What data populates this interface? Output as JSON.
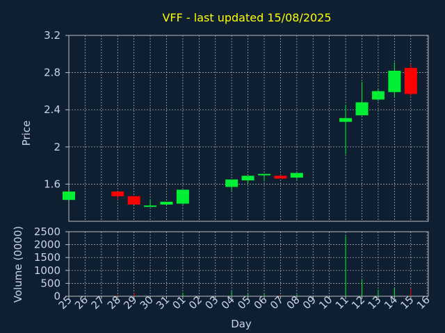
{
  "chart_data": [
    {
      "type": "candlestick",
      "title": "VFF - last updated 15/08/2025",
      "ylabel": "Price",
      "xlabel": "Day",
      "ylim": [
        1.2,
        3.2
      ],
      "yticks": [
        "3.2",
        "2.8",
        "2.4",
        "2",
        "1.6"
      ],
      "ytick_values": [
        3.2,
        2.8,
        2.4,
        2.0,
        1.6
      ],
      "grid": true,
      "x": [
        "25",
        "26",
        "27",
        "28",
        "29",
        "30",
        "31",
        "01",
        "02",
        "03",
        "04",
        "05",
        "06",
        "07",
        "08",
        "09",
        "10",
        "11",
        "12",
        "13",
        "14",
        "15",
        "16"
      ],
      "candles": [
        {
          "day": "25",
          "open": 1.43,
          "close": 1.52,
          "high": 1.52,
          "low": 1.43,
          "color": "#00ee33"
        },
        {
          "day": "28",
          "open": 1.52,
          "close": 1.47,
          "high": 1.52,
          "low": 1.43,
          "color": "#ff0000"
        },
        {
          "day": "29",
          "open": 1.47,
          "close": 1.38,
          "high": 1.47,
          "low": 1.38,
          "color": "#ff0000"
        },
        {
          "day": "30",
          "open": 1.36,
          "close": 1.37,
          "high": 1.44,
          "low": 1.36,
          "color": "#00ee33"
        },
        {
          "day": "31",
          "open": 1.38,
          "close": 1.41,
          "high": 1.41,
          "low": 1.38,
          "color": "#00ee33"
        },
        {
          "day": "01",
          "open": 1.39,
          "close": 1.54,
          "high": 1.54,
          "low": 1.38,
          "color": "#00ee33"
        },
        {
          "day": "04",
          "open": 1.57,
          "close": 1.65,
          "high": 1.65,
          "low": 1.53,
          "color": "#00ee33"
        },
        {
          "day": "05",
          "open": 1.64,
          "close": 1.69,
          "high": 1.69,
          "low": 1.6,
          "color": "#00ee33"
        },
        {
          "day": "06",
          "open": 1.7,
          "close": 1.71,
          "high": 1.71,
          "low": 1.63,
          "color": "#00ee33"
        },
        {
          "day": "07",
          "open": 1.69,
          "close": 1.66,
          "high": 1.7,
          "low": 1.66,
          "color": "#ff0000"
        },
        {
          "day": "08",
          "open": 1.67,
          "close": 1.72,
          "high": 1.72,
          "low": 1.65,
          "color": "#00ee33"
        },
        {
          "day": "11",
          "open": 2.27,
          "close": 2.31,
          "high": 2.45,
          "low": 1.92,
          "color": "#00ee33"
        },
        {
          "day": "12",
          "open": 2.34,
          "close": 2.48,
          "high": 2.7,
          "low": 2.34,
          "color": "#00ee33"
        },
        {
          "day": "13",
          "open": 2.51,
          "close": 2.6,
          "high": 2.62,
          "low": 2.49,
          "color": "#00ee33"
        },
        {
          "day": "14",
          "open": 2.59,
          "close": 2.82,
          "high": 2.91,
          "low": 2.54,
          "color": "#00ee33"
        },
        {
          "day": "15",
          "open": 2.85,
          "close": 2.57,
          "high": 2.89,
          "low": 2.55,
          "color": "#ff0000"
        }
      ]
    },
    {
      "type": "bar",
      "ylabel": "Volume (0000)",
      "xlabel": "Day",
      "ylim": [
        0,
        2500
      ],
      "yticks": [
        "2500",
        "2000",
        "1500",
        "1000",
        "500",
        "0"
      ],
      "ytick_values": [
        2500,
        2000,
        1500,
        1000,
        500,
        0
      ],
      "grid": true,
      "bars": [
        {
          "day": "25",
          "value": 20,
          "color": "#00ee33"
        },
        {
          "day": "28",
          "value": 60,
          "color": "#ff0000"
        },
        {
          "day": "29",
          "value": 120,
          "color": "#ff0000"
        },
        {
          "day": "30",
          "value": 30,
          "color": "#00ee33"
        },
        {
          "day": "31",
          "value": 25,
          "color": "#00ee33"
        },
        {
          "day": "01",
          "value": 140,
          "color": "#00ee33"
        },
        {
          "day": "04",
          "value": 200,
          "color": "#00ee33"
        },
        {
          "day": "05",
          "value": 110,
          "color": "#00ee33"
        },
        {
          "day": "06",
          "value": 90,
          "color": "#00ee33"
        },
        {
          "day": "07",
          "value": 60,
          "color": "#ff0000"
        },
        {
          "day": "08",
          "value": 70,
          "color": "#00ee33"
        },
        {
          "day": "11",
          "value": 2330,
          "color": "#00ee33"
        },
        {
          "day": "12",
          "value": 650,
          "color": "#00ee33"
        },
        {
          "day": "13",
          "value": 250,
          "color": "#00ee33"
        },
        {
          "day": "14",
          "value": 320,
          "color": "#00ee33"
        },
        {
          "day": "15",
          "value": 300,
          "color": "#ff0000"
        }
      ]
    }
  ],
  "colors": {
    "background": "#0f1f32",
    "plot_background": "#0f1f32",
    "grid": "#bfbfbf",
    "up": "#00ee33",
    "down": "#ff0000",
    "title": "#ffff00",
    "axis_text": "#c8d6e8"
  }
}
